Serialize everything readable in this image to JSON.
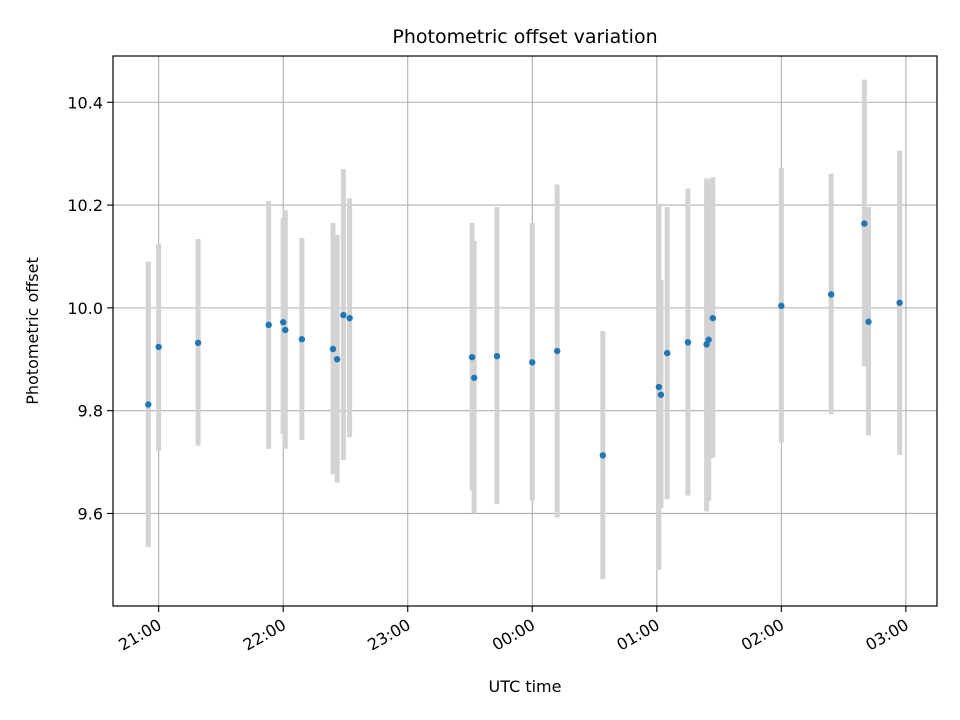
{
  "chart_data": {
    "type": "scatter",
    "title": "Photometric offset variation",
    "xlabel": "UTC time",
    "ylabel": "Photometric offset",
    "x_is_time": true,
    "x_reference_date": "2000-01-01",
    "xlim": [
      "2000-01-01T20:38",
      "2000-01-02T03:15"
    ],
    "ylim": [
      9.42,
      10.49
    ],
    "x_ticks": [
      "21:00",
      "22:00",
      "23:00",
      "00:00",
      "01:00",
      "02:00",
      "03:00"
    ],
    "y_ticks": [
      "9.6",
      "9.8",
      "10.0",
      "10.2",
      "10.4"
    ],
    "grid": true,
    "point_color": "#1f77b4",
    "errorbar_color": "#d3d3d3",
    "points": [
      {
        "t": "2000-01-01T20:55",
        "y": 9.812,
        "low": 9.535,
        "high": 10.09
      },
      {
        "t": "2000-01-01T21:00",
        "y": 9.924,
        "low": 9.722,
        "high": 10.125
      },
      {
        "t": "2000-01-01T21:19",
        "y": 9.932,
        "low": 9.732,
        "high": 10.134
      },
      {
        "t": "2000-01-01T21:53",
        "y": 9.967,
        "low": 9.726,
        "high": 10.208
      },
      {
        "t": "2000-01-01T22:00",
        "y": 9.972,
        "low": 9.755,
        "high": 10.175
      },
      {
        "t": "2000-01-01T22:01",
        "y": 9.957,
        "low": 9.726,
        "high": 10.19
      },
      {
        "t": "2000-01-01T22:09",
        "y": 9.939,
        "low": 9.743,
        "high": 10.136
      },
      {
        "t": "2000-01-01T22:24",
        "y": 9.92,
        "low": 9.676,
        "high": 10.165
      },
      {
        "t": "2000-01-01T22:26",
        "y": 9.9,
        "low": 9.66,
        "high": 10.142
      },
      {
        "t": "2000-01-01T22:29",
        "y": 9.986,
        "low": 9.704,
        "high": 10.27
      },
      {
        "t": "2000-01-01T22:32",
        "y": 9.98,
        "low": 9.748,
        "high": 10.213
      },
      {
        "t": "2000-01-01T23:31",
        "y": 9.904,
        "low": 9.645,
        "high": 10.165
      },
      {
        "t": "2000-01-01T23:32",
        "y": 9.864,
        "low": 9.6,
        "high": 10.13
      },
      {
        "t": "2000-01-01T23:43",
        "y": 9.906,
        "low": 9.618,
        "high": 10.196
      },
      {
        "t": "2000-01-02T00:00",
        "y": 9.894,
        "low": 9.625,
        "high": 10.165
      },
      {
        "t": "2000-01-02T00:12",
        "y": 9.916,
        "low": 9.592,
        "high": 10.24
      },
      {
        "t": "2000-01-02T00:34",
        "y": 9.713,
        "low": 9.472,
        "high": 9.955
      },
      {
        "t": "2000-01-02T01:01",
        "y": 9.846,
        "low": 9.49,
        "high": 10.203
      },
      {
        "t": "2000-01-02T01:02",
        "y": 9.831,
        "low": 9.61,
        "high": 10.055
      },
      {
        "t": "2000-01-02T01:05",
        "y": 9.912,
        "low": 9.628,
        "high": 10.196
      },
      {
        "t": "2000-01-02T01:15",
        "y": 9.933,
        "low": 9.635,
        "high": 10.232
      },
      {
        "t": "2000-01-02T01:24",
        "y": 9.929,
        "low": 9.604,
        "high": 10.252
      },
      {
        "t": "2000-01-02T01:25",
        "y": 9.938,
        "low": 9.625,
        "high": 10.25
      },
      {
        "t": "2000-01-02T01:27",
        "y": 9.98,
        "low": 9.708,
        "high": 10.254
      },
      {
        "t": "2000-01-02T02:00",
        "y": 10.004,
        "low": 9.738,
        "high": 10.272
      },
      {
        "t": "2000-01-02T02:24",
        "y": 10.026,
        "low": 9.793,
        "high": 10.261
      },
      {
        "t": "2000-01-02T02:40",
        "y": 10.164,
        "low": 9.886,
        "high": 10.444
      },
      {
        "t": "2000-01-02T02:42",
        "y": 9.973,
        "low": 9.752,
        "high": 10.196
      },
      {
        "t": "2000-01-02T02:57",
        "y": 10.01,
        "low": 9.714,
        "high": 10.306
      }
    ]
  }
}
